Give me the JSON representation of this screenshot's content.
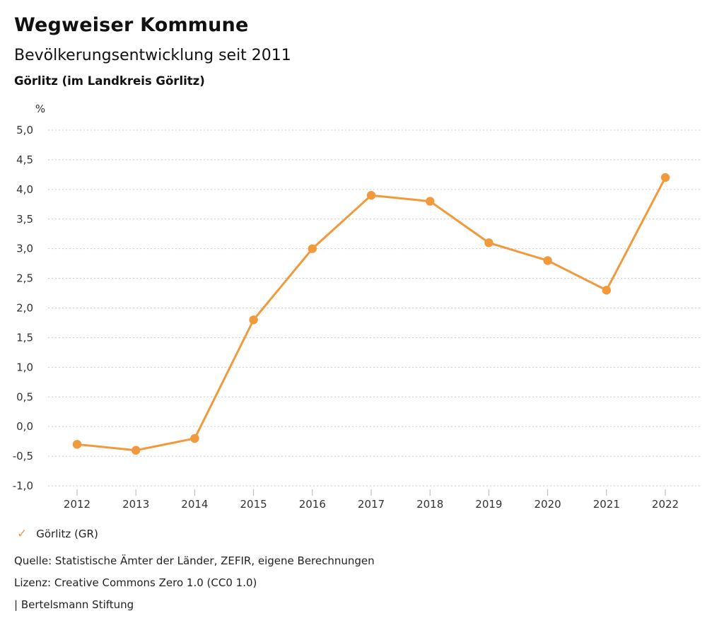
{
  "header": {
    "title": "Wegweiser Kommune",
    "subtitle": "Bevölkerungsentwicklung seit 2011",
    "region": "Görlitz (im Landkreis Görlitz)"
  },
  "chart_data": {
    "type": "line",
    "title": "Bevölkerungsentwicklung seit 2011",
    "region": "Görlitz (im Landkreis Görlitz)",
    "unit_label": "%",
    "x": [
      2012,
      2013,
      2014,
      2015,
      2016,
      2017,
      2018,
      2019,
      2020,
      2021,
      2022
    ],
    "series": [
      {
        "name": "Görlitz (GR)",
        "color": "#F09A3C",
        "values": [
          -0.3,
          -0.4,
          -0.2,
          1.8,
          3.0,
          3.9,
          3.8,
          3.1,
          2.8,
          2.3,
          4.2
        ]
      }
    ],
    "ylim": [
      -1.0,
      5.0
    ],
    "y_ticks": [
      5.0,
      4.5,
      4.0,
      3.5,
      3.0,
      2.5,
      2.0,
      1.5,
      1.0,
      0.5,
      0.0,
      -0.5,
      -1.0
    ],
    "y_tick_labels": [
      "5,0",
      "4,5",
      "4,0",
      "3,5",
      "3,0",
      "2,5",
      "2,0",
      "1,5",
      "1,0",
      "0,5",
      "0,0",
      "-0,5",
      "-1,0"
    ],
    "grid": "horizontal-dotted",
    "legend_position": "bottom-left"
  },
  "legend": {
    "items": [
      {
        "label": "Görlitz (GR)",
        "icon": "check",
        "color": "#F09A3C"
      }
    ]
  },
  "footer": {
    "source": "Quelle: Statistische Ämter der Länder, ZEFIR, eigene Berechnungen",
    "license": "Lizenz: Creative Commons Zero 1.0 (CC0 1.0)",
    "brand": "| Bertelsmann Stiftung"
  },
  "colors": {
    "accent": "#F09A3C",
    "grid": "#C9C9C9",
    "tick": "#B5B5B5",
    "axis_text": "#333333"
  }
}
